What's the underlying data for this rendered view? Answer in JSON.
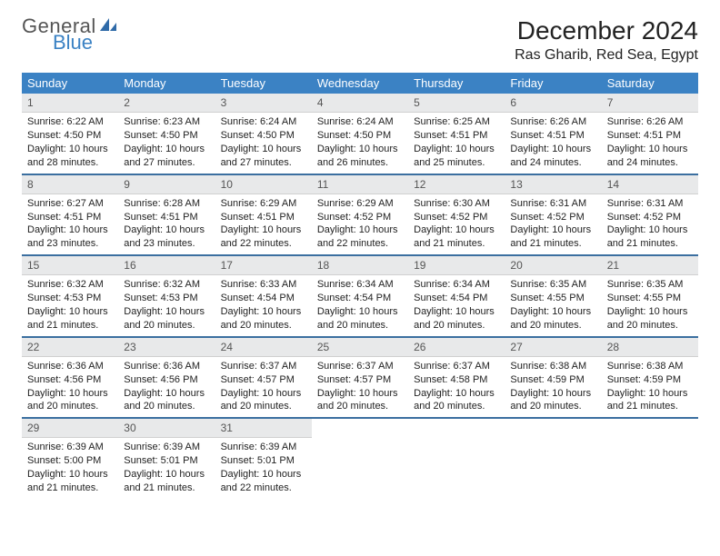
{
  "brand": {
    "part1": "General",
    "part2": "Blue",
    "icon_color": "#2f6aa8"
  },
  "title": "December 2024",
  "location": "Ras Gharib, Red Sea, Egypt",
  "colors": {
    "header_bg": "#3b82c4",
    "header_text": "#ffffff",
    "daynum_bg": "#e8e9ea",
    "row_border": "#3b6fa0",
    "text": "#222222"
  },
  "day_labels": [
    "Sunday",
    "Monday",
    "Tuesday",
    "Wednesday",
    "Thursday",
    "Friday",
    "Saturday"
  ],
  "weeks": [
    [
      {
        "n": "1",
        "sr": "6:22 AM",
        "ss": "4:50 PM",
        "dl": "10 hours and 28 minutes."
      },
      {
        "n": "2",
        "sr": "6:23 AM",
        "ss": "4:50 PM",
        "dl": "10 hours and 27 minutes."
      },
      {
        "n": "3",
        "sr": "6:24 AM",
        "ss": "4:50 PM",
        "dl": "10 hours and 27 minutes."
      },
      {
        "n": "4",
        "sr": "6:24 AM",
        "ss": "4:50 PM",
        "dl": "10 hours and 26 minutes."
      },
      {
        "n": "5",
        "sr": "6:25 AM",
        "ss": "4:51 PM",
        "dl": "10 hours and 25 minutes."
      },
      {
        "n": "6",
        "sr": "6:26 AM",
        "ss": "4:51 PM",
        "dl": "10 hours and 24 minutes."
      },
      {
        "n": "7",
        "sr": "6:26 AM",
        "ss": "4:51 PM",
        "dl": "10 hours and 24 minutes."
      }
    ],
    [
      {
        "n": "8",
        "sr": "6:27 AM",
        "ss": "4:51 PM",
        "dl": "10 hours and 23 minutes."
      },
      {
        "n": "9",
        "sr": "6:28 AM",
        "ss": "4:51 PM",
        "dl": "10 hours and 23 minutes."
      },
      {
        "n": "10",
        "sr": "6:29 AM",
        "ss": "4:51 PM",
        "dl": "10 hours and 22 minutes."
      },
      {
        "n": "11",
        "sr": "6:29 AM",
        "ss": "4:52 PM",
        "dl": "10 hours and 22 minutes."
      },
      {
        "n": "12",
        "sr": "6:30 AM",
        "ss": "4:52 PM",
        "dl": "10 hours and 21 minutes."
      },
      {
        "n": "13",
        "sr": "6:31 AM",
        "ss": "4:52 PM",
        "dl": "10 hours and 21 minutes."
      },
      {
        "n": "14",
        "sr": "6:31 AM",
        "ss": "4:52 PM",
        "dl": "10 hours and 21 minutes."
      }
    ],
    [
      {
        "n": "15",
        "sr": "6:32 AM",
        "ss": "4:53 PM",
        "dl": "10 hours and 21 minutes."
      },
      {
        "n": "16",
        "sr": "6:32 AM",
        "ss": "4:53 PM",
        "dl": "10 hours and 20 minutes."
      },
      {
        "n": "17",
        "sr": "6:33 AM",
        "ss": "4:54 PM",
        "dl": "10 hours and 20 minutes."
      },
      {
        "n": "18",
        "sr": "6:34 AM",
        "ss": "4:54 PM",
        "dl": "10 hours and 20 minutes."
      },
      {
        "n": "19",
        "sr": "6:34 AM",
        "ss": "4:54 PM",
        "dl": "10 hours and 20 minutes."
      },
      {
        "n": "20",
        "sr": "6:35 AM",
        "ss": "4:55 PM",
        "dl": "10 hours and 20 minutes."
      },
      {
        "n": "21",
        "sr": "6:35 AM",
        "ss": "4:55 PM",
        "dl": "10 hours and 20 minutes."
      }
    ],
    [
      {
        "n": "22",
        "sr": "6:36 AM",
        "ss": "4:56 PM",
        "dl": "10 hours and 20 minutes."
      },
      {
        "n": "23",
        "sr": "6:36 AM",
        "ss": "4:56 PM",
        "dl": "10 hours and 20 minutes."
      },
      {
        "n": "24",
        "sr": "6:37 AM",
        "ss": "4:57 PM",
        "dl": "10 hours and 20 minutes."
      },
      {
        "n": "25",
        "sr": "6:37 AM",
        "ss": "4:57 PM",
        "dl": "10 hours and 20 minutes."
      },
      {
        "n": "26",
        "sr": "6:37 AM",
        "ss": "4:58 PM",
        "dl": "10 hours and 20 minutes."
      },
      {
        "n": "27",
        "sr": "6:38 AM",
        "ss": "4:59 PM",
        "dl": "10 hours and 20 minutes."
      },
      {
        "n": "28",
        "sr": "6:38 AM",
        "ss": "4:59 PM",
        "dl": "10 hours and 21 minutes."
      }
    ],
    [
      {
        "n": "29",
        "sr": "6:39 AM",
        "ss": "5:00 PM",
        "dl": "10 hours and 21 minutes."
      },
      {
        "n": "30",
        "sr": "6:39 AM",
        "ss": "5:01 PM",
        "dl": "10 hours and 21 minutes."
      },
      {
        "n": "31",
        "sr": "6:39 AM",
        "ss": "5:01 PM",
        "dl": "10 hours and 22 minutes."
      },
      null,
      null,
      null,
      null
    ]
  ],
  "labels": {
    "sunrise": "Sunrise: ",
    "sunset": "Sunset: ",
    "daylight": "Daylight: "
  }
}
